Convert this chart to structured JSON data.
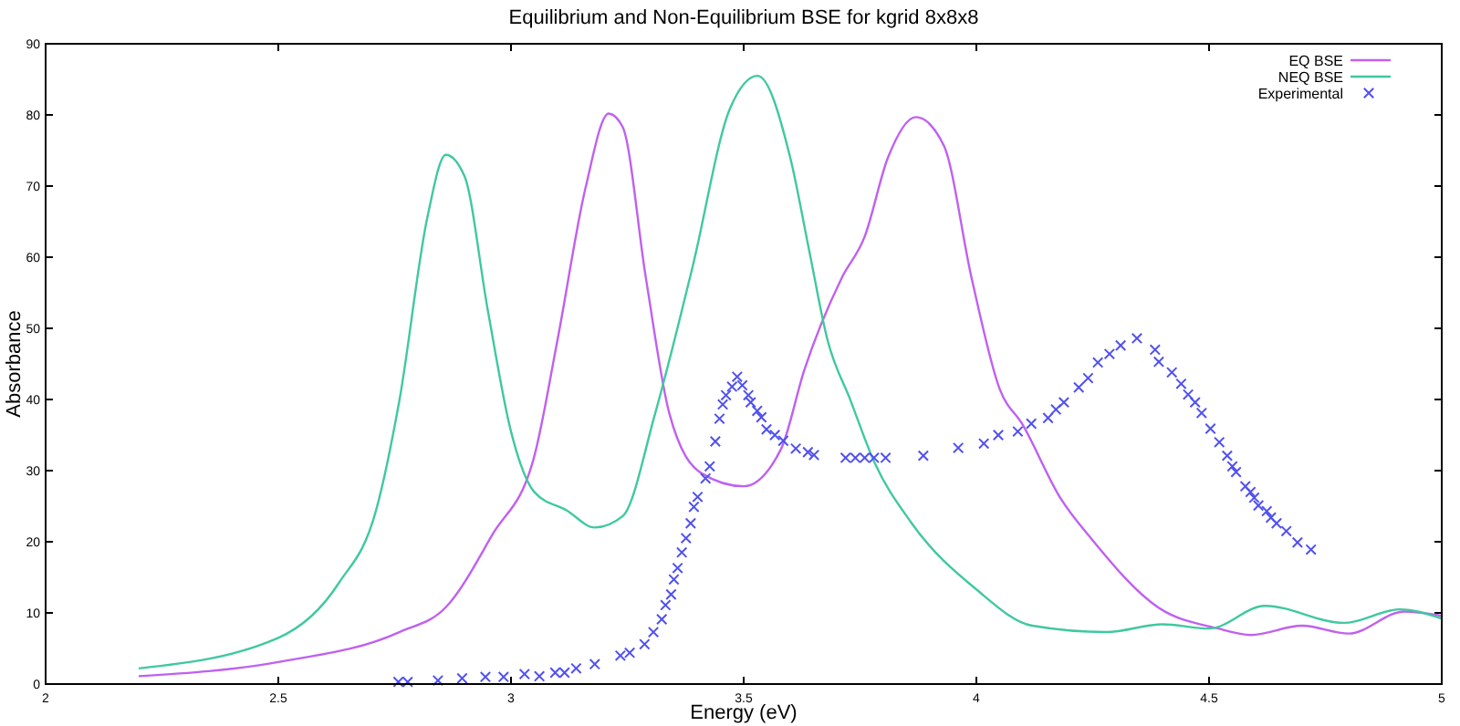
{
  "chart_data": {
    "type": "line",
    "title": "Equilibrium and Non-Equilibrium BSE for kgrid 8x8x8",
    "xlabel": "Energy (eV)",
    "ylabel": "Absorbance",
    "xlim": [
      2,
      5
    ],
    "xticks": [
      2,
      2.5,
      3,
      3.5,
      4,
      4.5,
      5
    ],
    "ylim": [
      0,
      90
    ],
    "yticks": [
      0,
      10,
      20,
      30,
      40,
      50,
      60,
      70,
      80,
      90
    ],
    "grid": false,
    "legend": "top right",
    "series": [
      {
        "name": "EQ BSE",
        "color": "#c060f0",
        "marker": "none",
        "x": [
          2.2,
          2.5,
          2.76,
          2.86,
          2.96,
          3.05,
          3.1,
          3.16,
          3.21,
          3.24,
          3.29,
          3.34,
          3.41,
          3.5,
          3.58,
          3.63,
          3.71,
          3.76,
          3.81,
          3.87,
          3.93,
          3.99,
          4.05,
          4.1,
          4.18,
          4.25,
          4.39,
          4.52,
          4.59,
          4.7,
          4.8,
          4.92,
          5.0
        ],
        "values": [
          1.1,
          3.1,
          7.3,
          10.8,
          21,
          32,
          48.4,
          69.7,
          80.2,
          78.3,
          57,
          38.1,
          29.6,
          27.8,
          33,
          44.1,
          57,
          62.9,
          74,
          79.7,
          75.7,
          57,
          41.5,
          36.4,
          26.2,
          20.2,
          10.8,
          7.8,
          6.9,
          8.2,
          7.1,
          10.2,
          9.6
        ]
      },
      {
        "name": "NEQ BSE",
        "color": "#40c8a0",
        "marker": "none",
        "x": [
          2.2,
          2.5,
          2.63,
          2.71,
          2.76,
          2.82,
          2.86,
          2.9,
          2.95,
          3.0,
          3.05,
          3.12,
          3.18,
          3.24,
          3.31,
          3.39,
          3.47,
          3.53,
          3.6,
          3.64,
          3.68,
          3.73,
          3.78,
          3.86,
          4.0,
          4.12,
          4.28,
          4.4,
          4.5,
          4.62,
          4.79,
          4.91,
          5.0
        ],
        "values": [
          2.2,
          6.5,
          14.2,
          24.4,
          39.8,
          65.5,
          74.4,
          71.4,
          52.6,
          35.5,
          27,
          24.4,
          22,
          23.6,
          38.1,
          58.6,
          80.8,
          85.5,
          74,
          61.2,
          48.4,
          39.8,
          31.3,
          22.7,
          13.3,
          8.2,
          7.3,
          8.4,
          7.8,
          11,
          8.6,
          10.5,
          9.2
        ]
      },
      {
        "name": "Experimental",
        "color": "#5050f0",
        "type": "scatter",
        "marker": "cross",
        "x": [
          2.758,
          2.778,
          2.843,
          2.895,
          2.945,
          2.984,
          3.029,
          3.061,
          3.095,
          3.115,
          3.14,
          3.18,
          3.235,
          3.255,
          3.287,
          3.306,
          3.324,
          3.332,
          3.344,
          3.35,
          3.358,
          3.367,
          3.376,
          3.386,
          3.393,
          3.401,
          3.418,
          3.427,
          3.439,
          3.448,
          3.455,
          3.462,
          3.475,
          3.486,
          3.497,
          3.51,
          3.515,
          3.529,
          3.538,
          3.549,
          3.567,
          3.585,
          3.612,
          3.638,
          3.651,
          3.719,
          3.74,
          3.76,
          3.78,
          3.805,
          3.886,
          3.961,
          4.016,
          4.047,
          4.089,
          4.118,
          4.154,
          4.171,
          4.188,
          4.22,
          4.24,
          4.261,
          4.286,
          4.31,
          4.345,
          4.384,
          4.392,
          4.42,
          4.44,
          4.455,
          4.47,
          4.484,
          4.503,
          4.522,
          4.539,
          4.55,
          4.558,
          4.578,
          4.589,
          4.597,
          4.606,
          4.624,
          4.633,
          4.645,
          4.666,
          4.69,
          4.719
        ],
        "values": [
          0.3,
          0.3,
          0.5,
          0.8,
          1,
          1,
          1.4,
          1.1,
          1.6,
          1.6,
          2.2,
          2.8,
          4,
          4.4,
          5.6,
          7.3,
          9.1,
          11.1,
          12.6,
          14.7,
          16.3,
          18.5,
          20.5,
          22.6,
          24.9,
          26.3,
          28.9,
          30.6,
          34.1,
          37.3,
          39.3,
          40.6,
          41.8,
          43.2,
          42,
          40.6,
          39.6,
          38.4,
          37.5,
          35.8,
          35,
          34.2,
          33.1,
          32.6,
          32.2,
          31.8,
          31.8,
          31.8,
          31.8,
          31.8,
          32.1,
          33.2,
          33.8,
          35,
          35.5,
          36.6,
          37.4,
          38.6,
          39.6,
          41.7,
          43,
          45.2,
          46.4,
          47.6,
          48.6,
          47,
          45.3,
          43.8,
          42.2,
          40.7,
          39.6,
          38.1,
          35.9,
          34,
          32.1,
          30.6,
          29.8,
          27.8,
          27,
          26.2,
          25.1,
          24.3,
          23.4,
          22.6,
          21.5,
          19.9,
          18.9
        ]
      }
    ]
  }
}
